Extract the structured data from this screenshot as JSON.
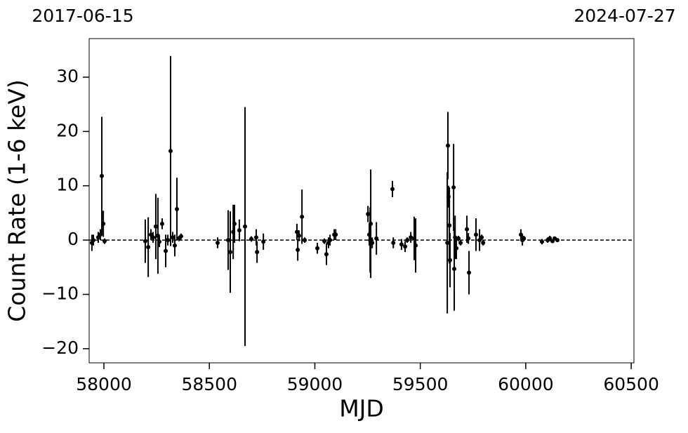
{
  "chart_data": {
    "type": "errorbar",
    "xlabel": "MJD",
    "ylabel": "Count Rate (1-6 keV)",
    "top_labels": [
      "2017-06-15",
      "2024-07-27"
    ],
    "xlim": [
      57930,
      60513
    ],
    "ylim": [
      -22.6,
      37.1
    ],
    "xticks": [
      58000,
      58500,
      59000,
      59500,
      60000,
      60500
    ],
    "yticks": [
      {
        "value": -20,
        "label": "−20"
      },
      {
        "value": -10,
        "label": "−10"
      },
      0,
      10,
      20,
      30
    ],
    "hline": 0,
    "series": [
      {
        "color": "#000000",
        "x": [
          57943,
          57950,
          57973,
          57983,
          57990,
          57997,
          58003,
          58196,
          58210,
          58223,
          58233,
          58246,
          58256,
          58263,
          58276,
          58293,
          58303,
          58316,
          58326,
          58336,
          58346,
          58356,
          58366,
          58539,
          58589,
          58599,
          58613,
          58619,
          58642,
          58669,
          58699,
          58722,
          58726,
          58756,
          58915,
          58919,
          58925,
          58939,
          58952,
          59012,
          59045,
          59055,
          59065,
          59072,
          59092,
          59099,
          59252,
          59258,
          59262,
          59265,
          59272,
          59292,
          59368,
          59372,
          59411,
          59428,
          59438,
          59455,
          59471,
          59478,
          59628,
          59631,
          59634,
          59638,
          59641,
          59658,
          59661,
          59665,
          59671,
          59681,
          59691,
          59721,
          59728,
          59731,
          59764,
          59781,
          59791,
          59798,
          59977,
          59984,
          59991,
          60077,
          60104,
          60114,
          60127,
          60137,
          60150
        ],
        "values": [
          -0.5,
          0,
          0.5,
          1,
          11.8,
          3,
          -0.2,
          -0.2,
          -1.3,
          1,
          0.5,
          2.5,
          0.8,
          -0.3,
          3,
          -2,
          0,
          16.4,
          0.5,
          -1,
          5.7,
          0.3,
          0.7,
          -0.5,
          0,
          -2.2,
          1.5,
          3,
          1.8,
          2.5,
          0.2,
          0.5,
          -2.2,
          -0.3,
          1.5,
          -1.8,
          0.8,
          4.3,
          0,
          -1.5,
          -0.2,
          -2.6,
          -0.5,
          0,
          1,
          1,
          4.8,
          1,
          0,
          3,
          -0.5,
          0.3,
          9.4,
          -0.5,
          -0.8,
          -1.2,
          0,
          0.5,
          0.3,
          -1,
          -0.5,
          17.4,
          8,
          2.7,
          -3.7,
          9.7,
          -5.3,
          0.5,
          -1.5,
          0.3,
          -0.5,
          2,
          0.3,
          -6,
          1,
          0,
          0.5,
          -0.5,
          1,
          0,
          0.3,
          -0.3,
          0,
          0.3,
          -0.2,
          0.3,
          0
        ],
        "errors": [
          1.5,
          1,
          1,
          1,
          10.9,
          2.4,
          0.5,
          4,
          5.5,
          1,
          1,
          6,
          7,
          1,
          1,
          3,
          1,
          17.5,
          1,
          2,
          5.8,
          0.5,
          0.5,
          1,
          5.5,
          7.5,
          5,
          3.5,
          2,
          22,
          0.5,
          1.5,
          2,
          1.5,
          1.5,
          2,
          1,
          5,
          0.5,
          1,
          0.5,
          2,
          1,
          1,
          1,
          1,
          1.5,
          2,
          6,
          10,
          1,
          3,
          1.5,
          1,
          1,
          1,
          0.5,
          1,
          4,
          5,
          13,
          6.2,
          2,
          7,
          5,
          8,
          7.7,
          4,
          2,
          0.5,
          0.5,
          2.5,
          1,
          4,
          3,
          2,
          0.5,
          0.5,
          1,
          1,
          0.5,
          0.5,
          0.5,
          0.5,
          0.3,
          0.3,
          0.3
        ]
      }
    ]
  }
}
